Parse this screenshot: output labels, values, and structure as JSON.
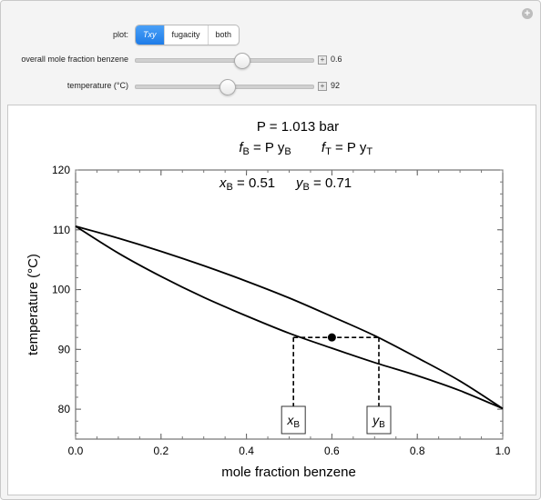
{
  "controls": {
    "plot_label": "plot:",
    "plot_options": [
      "Txy",
      "fugacity",
      "both"
    ],
    "plot_selected": "Txy",
    "mole_fraction_label": "overall mole fraction benzene",
    "mole_fraction_value": "0.6",
    "mole_fraction_slider": 0.6,
    "temperature_label": "temperature (°C)",
    "temperature_value": "92",
    "temperature_slider": 0.52
  },
  "plot": {
    "header_pressure": "P = 1.013 bar",
    "header_fb_lhs": "f",
    "header_fb_sub": "B",
    "header_fb_rhs": " = P y",
    "header_fb_rhs_sub": "B",
    "header_ft_lhs": "f",
    "header_ft_sub": "T",
    "header_ft_rhs": " = P y",
    "header_ft_rhs_sub": "T",
    "result_xb_label": "x",
    "result_xb_sub": "B",
    "result_xb_value": " = 0.51",
    "result_yb_label": "y",
    "result_yb_sub": "B",
    "result_yb_value": " = 0.71",
    "tag_xb": "x",
    "tag_xb_sub": "B",
    "tag_yb": "y",
    "tag_yb_sub": "B"
  },
  "chart_data": {
    "type": "line",
    "xlabel": "mole fraction benzene",
    "ylabel": "temperature (°C)",
    "xlim": [
      0,
      1
    ],
    "ylim": [
      75,
      120
    ],
    "x_ticks": [
      "0.0",
      "0.2",
      "0.4",
      "0.6",
      "0.8",
      "1.0"
    ],
    "y_ticks": [
      "80",
      "90",
      "100",
      "110",
      "120"
    ],
    "series": [
      {
        "x": [
          0.0,
          0.1,
          0.2,
          0.3,
          0.4,
          0.5,
          0.6,
          0.7,
          0.8,
          0.9,
          1.0
        ],
        "y": [
          110.6,
          106.1,
          102.2,
          98.7,
          95.6,
          92.7,
          90.2,
          87.8,
          85.6,
          83.1,
          80.1
        ]
      },
      {
        "x": [
          0.0,
          0.1,
          0.2,
          0.3,
          0.4,
          0.5,
          0.6,
          0.7,
          0.8,
          0.9,
          1.0
        ],
        "y": [
          110.6,
          108.6,
          106.4,
          104.0,
          101.4,
          98.6,
          95.5,
          92.3,
          88.6,
          84.7,
          80.1
        ]
      }
    ],
    "tie_line": {
      "temperature": 92,
      "x_liquid": 0.51,
      "y_vapor": 0.71
    },
    "overall_point": {
      "x": 0.6,
      "y": 92
    },
    "grid": false
  }
}
